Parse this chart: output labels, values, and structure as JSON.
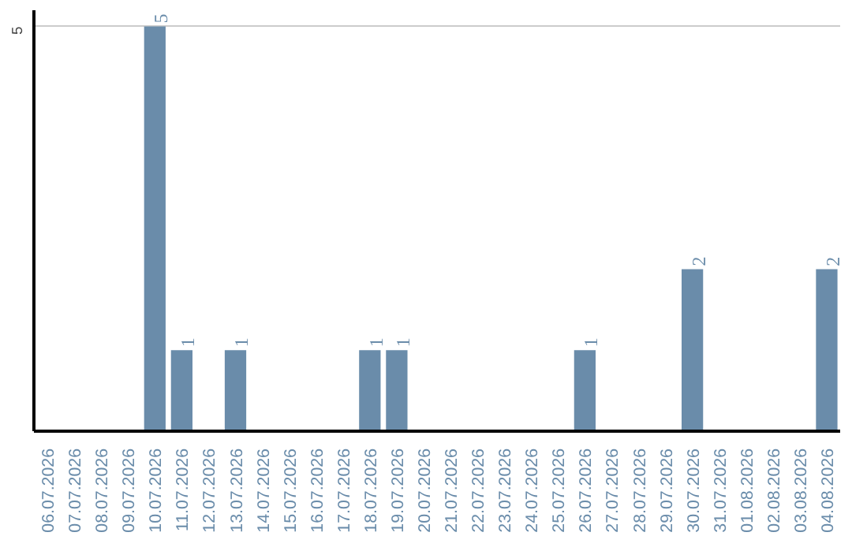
{
  "chart_data": {
    "type": "bar",
    "categories": [
      "06.07.2026",
      "07.07.2026",
      "08.07.2026",
      "09.07.2026",
      "10.07.2026",
      "11.07.2026",
      "12.07.2026",
      "13.07.2026",
      "14.07.2026",
      "15.07.2026",
      "16.07.2026",
      "17.07.2026",
      "18.07.2026",
      "19.07.2026",
      "20.07.2026",
      "21.07.2026",
      "22.07.2026",
      "23.07.2026",
      "24.07.2026",
      "25.07.2026",
      "26.07.2026",
      "27.07.2026",
      "28.07.2026",
      "29.07.2026",
      "30.07.2026",
      "31.07.2026",
      "01.08.2026",
      "02.08.2026",
      "03.08.2026",
      "04.08.2026"
    ],
    "values": [
      0,
      0,
      0,
      0,
      5,
      1,
      0,
      1,
      0,
      0,
      0,
      0,
      1,
      1,
      0,
      0,
      0,
      0,
      0,
      0,
      1,
      0,
      0,
      0,
      2,
      0,
      0,
      0,
      0,
      2
    ],
    "value_labels": [
      null,
      null,
      null,
      null,
      "5",
      "1",
      null,
      "1",
      null,
      null,
      null,
      null,
      "1",
      "1",
      null,
      null,
      null,
      null,
      null,
      null,
      "1",
      null,
      null,
      null,
      "2",
      null,
      null,
      null,
      null,
      "2"
    ],
    "color": "#6a8caa",
    "ylim": [
      0,
      5.2
    ],
    "yticks": [
      5
    ],
    "grid": "y"
  }
}
